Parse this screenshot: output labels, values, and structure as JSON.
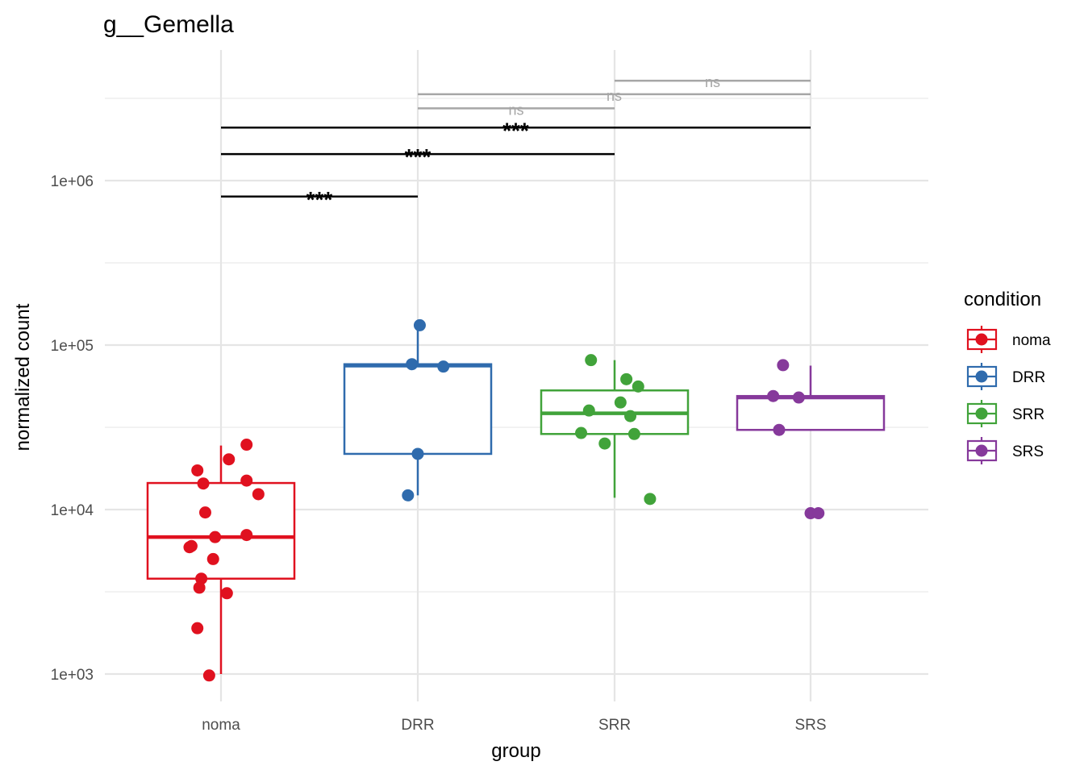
{
  "chart_data": {
    "type": "box",
    "title": "g__Gemella",
    "xlabel": "group",
    "ylabel": "normalized count",
    "yscale": "log10",
    "ylim": [
      700,
      5000000
    ],
    "yticks": [
      {
        "value": 1000,
        "label": "1e+03"
      },
      {
        "value": 10000,
        "label": "1e+04"
      },
      {
        "value": 100000,
        "label": "1e+05"
      },
      {
        "value": 1000000,
        "label": "1e+06"
      }
    ],
    "yminor": [
      3162,
      31623,
      316228,
      3162278
    ],
    "categories": [
      "noma",
      "DRR",
      "SRR",
      "SRS"
    ],
    "grid": true,
    "legend": {
      "title": "condition",
      "position": "right",
      "entries": [
        {
          "label": "noma",
          "color": "#E0111F"
        },
        {
          "label": "DRR",
          "color": "#2F6BAD"
        },
        {
          "label": "SRR",
          "color": "#41A33A"
        },
        {
          "label": "SRS",
          "color": "#86399B"
        }
      ]
    },
    "series": [
      {
        "name": "noma",
        "color": "#E0111F",
        "box": {
          "whisker_low": 1000,
          "q1": 3800,
          "median": 6800,
          "q3": 14500,
          "whisker_high": 24500
        },
        "points": [
          {
            "jitter": 0.13,
            "value": 24800
          },
          {
            "jitter": 0.04,
            "value": 20200
          },
          {
            "jitter": -0.12,
            "value": 17300
          },
          {
            "jitter": -0.09,
            "value": 14400
          },
          {
            "jitter": 0.13,
            "value": 15000
          },
          {
            "jitter": 0.19,
            "value": 12400
          },
          {
            "jitter": -0.08,
            "value": 9600
          },
          {
            "jitter": -0.03,
            "value": 6800
          },
          {
            "jitter": 0.13,
            "value": 7000
          },
          {
            "jitter": -0.16,
            "value": 5900
          },
          {
            "jitter": -0.15,
            "value": 6000
          },
          {
            "jitter": -0.04,
            "value": 5000
          },
          {
            "jitter": -0.1,
            "value": 3800
          },
          {
            "jitter": -0.11,
            "value": 3350
          },
          {
            "jitter": 0.03,
            "value": 3100
          },
          {
            "jitter": -0.12,
            "value": 1900
          },
          {
            "jitter": -0.06,
            "value": 980
          }
        ]
      },
      {
        "name": "DRR",
        "color": "#2F6BAD",
        "box": {
          "whisker_low": 12200,
          "q1": 21800,
          "median": 75000,
          "q3": 76500,
          "whisker_high": 130000
        },
        "points": [
          {
            "jitter": 0.01,
            "value": 132000
          },
          {
            "jitter": -0.03,
            "value": 76500
          },
          {
            "jitter": 0.13,
            "value": 74000
          },
          {
            "jitter": 0.0,
            "value": 21800
          },
          {
            "jitter": -0.05,
            "value": 12200
          }
        ]
      },
      {
        "name": "SRR",
        "color": "#41A33A",
        "box": {
          "whisker_low": 11800,
          "q1": 28800,
          "median": 38500,
          "q3": 53000,
          "whisker_high": 81000
        },
        "points": [
          {
            "jitter": -0.12,
            "value": 81000
          },
          {
            "jitter": 0.06,
            "value": 62000
          },
          {
            "jitter": 0.12,
            "value": 56000
          },
          {
            "jitter": 0.03,
            "value": 44800
          },
          {
            "jitter": -0.13,
            "value": 40000
          },
          {
            "jitter": 0.08,
            "value": 37000
          },
          {
            "jitter": -0.17,
            "value": 29200
          },
          {
            "jitter": 0.1,
            "value": 28800
          },
          {
            "jitter": -0.05,
            "value": 25200
          },
          {
            "jitter": 0.18,
            "value": 11600
          }
        ]
      },
      {
        "name": "SRS",
        "color": "#86399B",
        "box": {
          "whisker_low": 30500,
          "q1": 30500,
          "median": 48000,
          "q3": 49000,
          "whisker_high": 75000
        },
        "points": [
          {
            "jitter": -0.14,
            "value": 75500
          },
          {
            "jitter": -0.19,
            "value": 49000
          },
          {
            "jitter": -0.06,
            "value": 48000
          },
          {
            "jitter": -0.16,
            "value": 30500
          },
          {
            "jitter": 0.0,
            "value": 9500
          },
          {
            "jitter": 0.04,
            "value": 9500
          }
        ]
      }
    ],
    "comparisons": [
      {
        "from": "noma",
        "to": "DRR",
        "label": "***",
        "significant": true,
        "y": 800000
      },
      {
        "from": "noma",
        "to": "SRR",
        "label": "***",
        "significant": true,
        "y": 1450000
      },
      {
        "from": "noma",
        "to": "SRS",
        "label": "***",
        "significant": true,
        "y": 2100000
      },
      {
        "from": "DRR",
        "to": "SRR",
        "label": "ns",
        "significant": false,
        "y": 2750000
      },
      {
        "from": "DRR",
        "to": "SRS",
        "label": "ns",
        "significant": false,
        "y": 3350000
      },
      {
        "from": "SRR",
        "to": "SRS",
        "label": "ns",
        "significant": false,
        "y": 4050000
      }
    ]
  }
}
